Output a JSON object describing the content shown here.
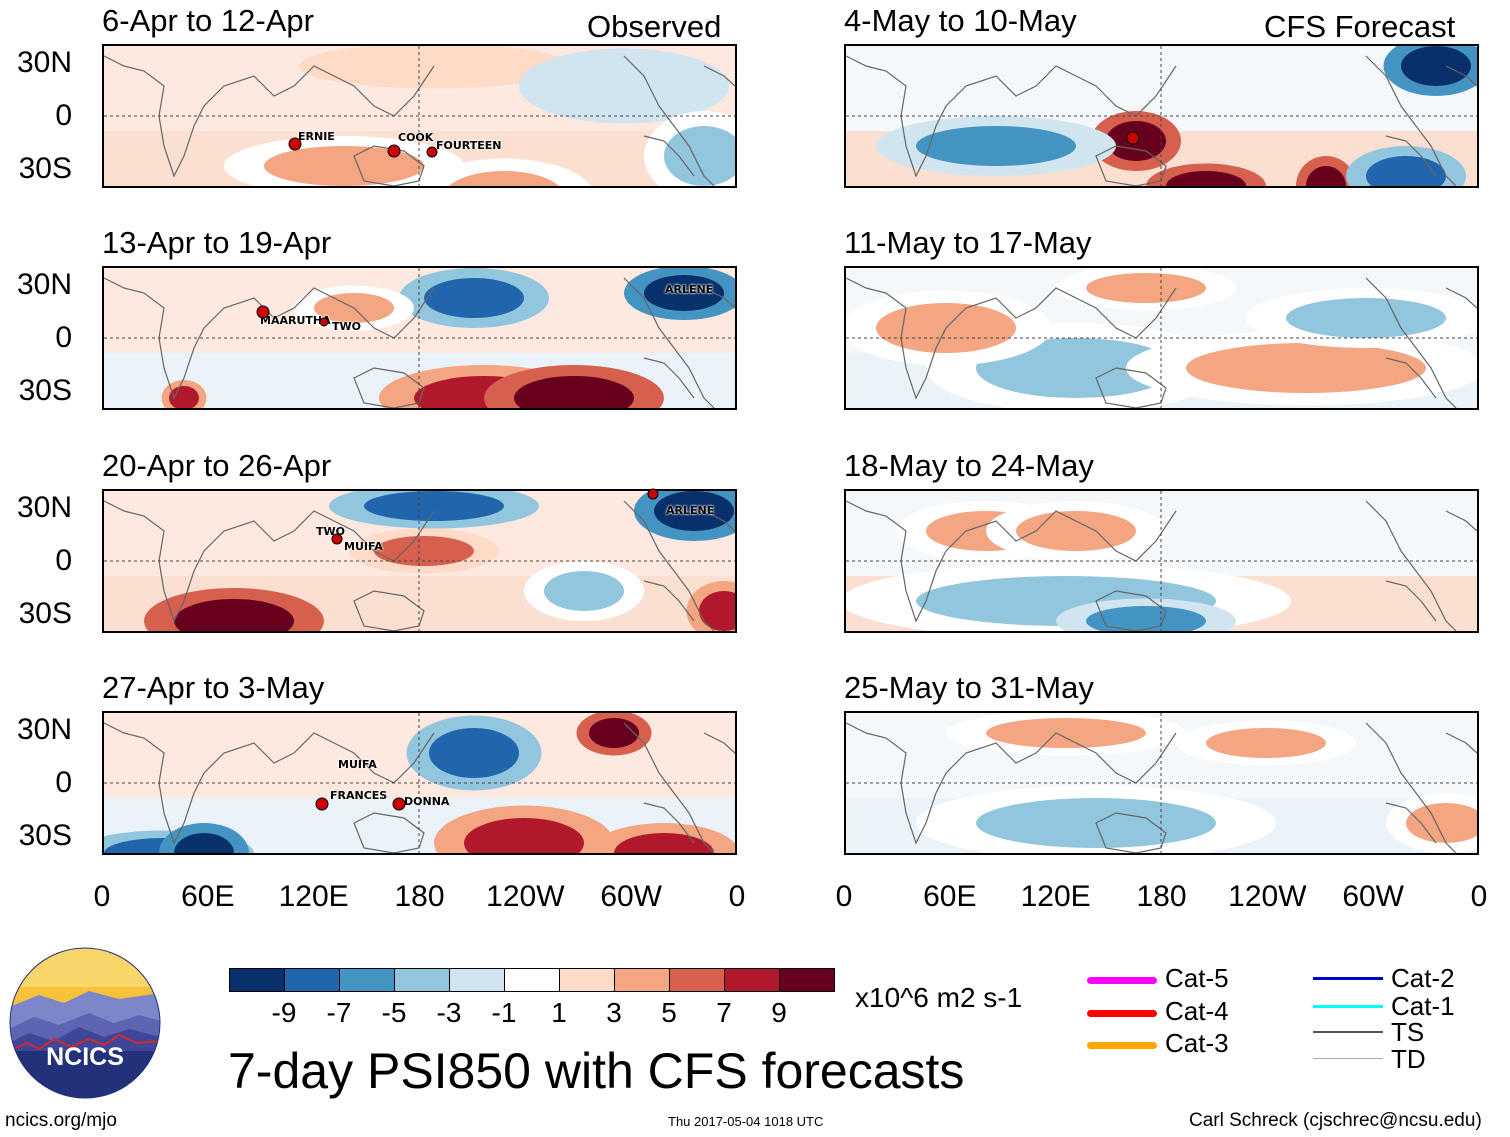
{
  "observed": {
    "label": "Observed",
    "panels": [
      {
        "title": "6-Apr to 12-Apr",
        "storms": [
          "ERNIE",
          "COOK",
          "FOURTEEN"
        ]
      },
      {
        "title": "13-Apr to 19-Apr",
        "storms": [
          "MAARUTHA",
          "TWO",
          "ARLENE"
        ]
      },
      {
        "title": "20-Apr to 26-Apr",
        "storms": [
          "TWO",
          "MUIFA",
          "ARLENE"
        ]
      },
      {
        "title": "27-Apr to 3-May",
        "storms": [
          "MUIFA",
          "FRANCES",
          "DONNA"
        ]
      }
    ]
  },
  "forecast": {
    "label": "CFS Forecast",
    "panels": [
      {
        "title": "4-May to 10-May"
      },
      {
        "title": "11-May to 17-May"
      },
      {
        "title": "18-May to 24-May"
      },
      {
        "title": "25-May to 31-May"
      }
    ]
  },
  "lat_labels": [
    "30N",
    "0",
    "30S"
  ],
  "lon_labels": [
    "0",
    "60E",
    "120E",
    "180",
    "120W",
    "60W",
    "0"
  ],
  "colorbar": {
    "colors": [
      "#08306b",
      "#2166ac",
      "#4393c3",
      "#92c5de",
      "#d1e5f0",
      "#ffffff",
      "#fddbc7",
      "#f4a582",
      "#d6604d",
      "#b2182b",
      "#67001f"
    ],
    "ticks": [
      "-9",
      "-7",
      "-5",
      "-3",
      "-1",
      "1",
      "3",
      "5",
      "7",
      "9"
    ],
    "units": "x10^6 m2 s-1"
  },
  "legend": [
    {
      "label": "Cat-5",
      "color": "#ff00ff"
    },
    {
      "label": "Cat-4",
      "color": "#ff0000"
    },
    {
      "label": "Cat-3",
      "color": "#ffa500"
    },
    {
      "label": "Cat-2",
      "color": "#0000cc"
    },
    {
      "label": "Cat-1",
      "color": "#00ffff"
    },
    {
      "label": "TS",
      "color": "#555555"
    },
    {
      "label": "TD",
      "color": "#aaaaaa"
    }
  ],
  "logo_text": "NCICS",
  "main_title": "7-day PSI850 with CFS forecasts",
  "footer": {
    "left": "ncics.org/mjo",
    "center": "Thu 2017-05-04 1018 UTC",
    "right": "Carl Schreck (cjschrec@ncsu.edu)"
  }
}
